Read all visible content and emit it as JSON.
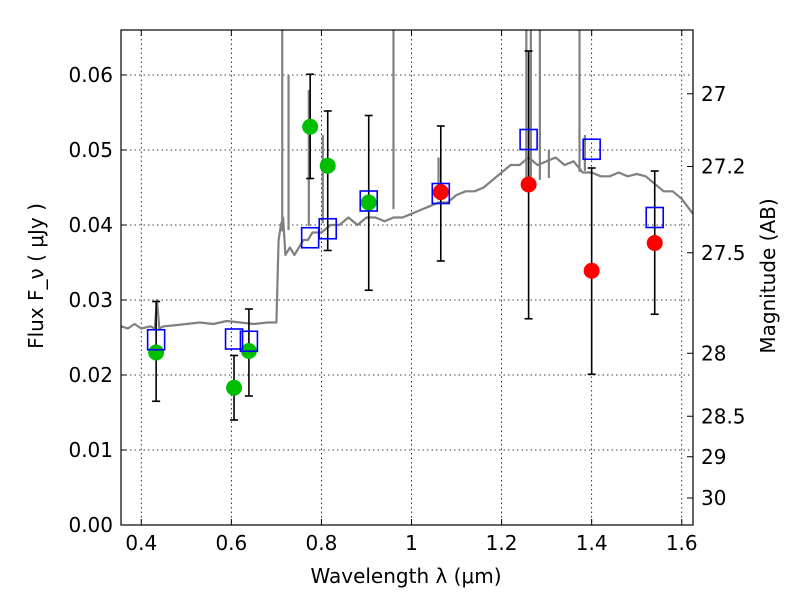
{
  "chart_data": {
    "type": "scatter",
    "xlabel": "Wavelength  λ (μm)",
    "ylabel": "Flux  F_ν  ( μJy )",
    "ylabel_right": "Magnitude (AB)",
    "xlim": [
      0.355,
      1.625
    ],
    "ylim": [
      0.0,
      0.066
    ],
    "x_ticks": [
      0.4,
      0.6,
      0.8,
      1.0,
      1.2,
      1.4,
      1.6
    ],
    "x_tick_labels": [
      "0.4",
      "0.6",
      "0.8",
      "1",
      "1.2",
      "1.4",
      "1.6"
    ],
    "y_ticks": [
      0.0,
      0.01,
      0.02,
      0.03,
      0.04,
      0.05,
      0.06
    ],
    "y_tick_labels": [
      "0.00",
      "0.01",
      "0.02",
      "0.03",
      "0.04",
      "0.05",
      "0.06"
    ],
    "right_ticks": [
      {
        "label": "27",
        "flux": 0.0575
      },
      {
        "label": "27.2",
        "flux": 0.0478
      },
      {
        "label": "27.5",
        "flux": 0.0363
      },
      {
        "label": "28",
        "flux": 0.0229
      },
      {
        "label": "28.5",
        "flux": 0.0145
      },
      {
        "label": "29",
        "flux": 0.0091
      },
      {
        "label": "30",
        "flux": 0.0036
      }
    ],
    "grid": true,
    "series": [
      {
        "kind": "model_spectrum",
        "color": "#808080",
        "x": [
          0.355,
          0.37,
          0.385,
          0.4,
          0.42,
          0.43,
          0.435,
          0.44,
          0.45,
          0.47,
          0.5,
          0.53,
          0.56,
          0.59,
          0.62,
          0.65,
          0.68,
          0.7,
          0.705,
          0.71,
          0.715,
          0.72,
          0.73,
          0.74,
          0.75,
          0.76,
          0.77,
          0.78,
          0.8,
          0.82,
          0.84,
          0.86,
          0.88,
          0.9,
          0.92,
          0.94,
          0.96,
          0.98,
          1.0,
          1.02,
          1.04,
          1.06,
          1.08,
          1.1,
          1.12,
          1.14,
          1.16,
          1.18,
          1.2,
          1.22,
          1.24,
          1.26,
          1.28,
          1.3,
          1.32,
          1.34,
          1.36,
          1.38,
          1.4,
          1.42,
          1.44,
          1.46,
          1.48,
          1.5,
          1.52,
          1.54,
          1.56,
          1.58,
          1.6,
          1.625
        ],
        "y": [
          0.0265,
          0.0262,
          0.0268,
          0.0262,
          0.0265,
          0.0262,
          0.03,
          0.0262,
          0.0265,
          0.0266,
          0.0268,
          0.027,
          0.0268,
          0.0272,
          0.027,
          0.0268,
          0.027,
          0.027,
          0.038,
          0.04,
          0.041,
          0.036,
          0.037,
          0.036,
          0.037,
          0.038,
          0.038,
          0.039,
          0.039,
          0.04,
          0.04,
          0.041,
          0.04,
          0.041,
          0.041,
          0.0405,
          0.041,
          0.041,
          0.0415,
          0.042,
          0.0425,
          0.043,
          0.043,
          0.044,
          0.0445,
          0.0445,
          0.045,
          0.046,
          0.047,
          0.048,
          0.048,
          0.049,
          0.048,
          0.0485,
          0.049,
          0.048,
          0.0485,
          0.047,
          0.047,
          0.0465,
          0.0465,
          0.047,
          0.0465,
          0.0468,
          0.0465,
          0.0455,
          0.0445,
          0.0445,
          0.0435,
          0.0415
        ]
      },
      {
        "kind": "model_spike",
        "color": "#808080",
        "x": [
          0.713,
          0.727,
          0.772,
          0.803,
          0.96,
          1.06,
          1.255,
          1.265,
          1.285,
          1.305,
          1.373,
          1.385
        ],
        "y": [
          0.075,
          0.06,
          0.058,
          0.052,
          0.075,
          0.049,
          0.075,
          0.075,
          0.075,
          0.05,
          0.075,
          0.052
        ]
      },
      {
        "kind": "observed_green",
        "color": "#00bf00",
        "x": [
          0.433,
          0.606,
          0.639,
          0.775,
          0.814,
          0.905
        ],
        "y": [
          0.023,
          0.0183,
          0.0232,
          0.0531,
          0.0479,
          0.043
        ],
        "err_low": [
          0.0165,
          0.014,
          0.0172,
          0.0462,
          0.0366,
          0.0313
        ],
        "err_high": [
          0.0298,
          0.0226,
          0.0288,
          0.0601,
          0.0552,
          0.0546
        ]
      },
      {
        "kind": "observed_red",
        "color": "#ff0000",
        "x": [
          1.065,
          1.26,
          1.4,
          1.54
        ],
        "y": [
          0.0444,
          0.0454,
          0.0339,
          0.0376
        ],
        "err_low": [
          0.0352,
          0.0275,
          0.0201,
          0.0281
        ],
        "err_high": [
          0.0532,
          0.0632,
          0.0476,
          0.0472
        ]
      },
      {
        "kind": "model_boxes",
        "color": "#0000ff",
        "x": [
          0.433,
          0.606,
          0.639,
          0.775,
          0.814,
          0.905,
          1.065,
          1.26,
          1.4,
          1.54
        ],
        "y": [
          0.0247,
          0.0248,
          0.0245,
          0.0383,
          0.0395,
          0.0432,
          0.0442,
          0.0514,
          0.0501,
          0.041
        ]
      }
    ]
  }
}
